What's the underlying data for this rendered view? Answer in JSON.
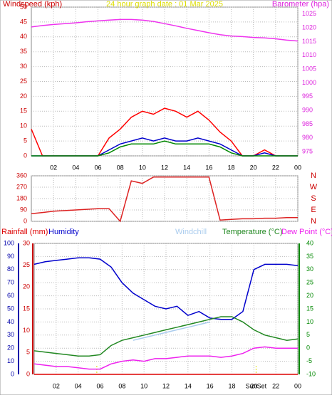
{
  "chart_data": [
    {
      "type": "line",
      "title": "24 hour graph date : 01 Mar 2025",
      "y_label": "Windspeed (kph)",
      "y2_label": "Barometer (hpa)",
      "y_color": "#cc0000",
      "y2_color": "#dd22dd",
      "x": [
        0,
        1,
        2,
        3,
        4,
        5,
        6,
        7,
        8,
        9,
        10,
        11,
        12,
        13,
        14,
        15,
        16,
        17,
        18,
        19,
        20,
        21,
        22,
        23,
        24
      ],
      "xlim": [
        0,
        24
      ],
      "xticks": [
        {
          "value": 2,
          "label": "02"
        },
        {
          "value": 4,
          "label": "04"
        },
        {
          "value": 6,
          "label": "06"
        },
        {
          "value": 8,
          "label": "08"
        },
        10,
        12,
        14,
        16,
        18,
        20,
        22,
        {
          "value": 24,
          "label": "00"
        }
      ],
      "ylim": [
        0,
        50
      ],
      "yticks": [
        0,
        5,
        10,
        15,
        20,
        25,
        30,
        35,
        40,
        45,
        50
      ],
      "y2lim": [
        973.5,
        1027.5
      ],
      "y2ticks": [
        975,
        980,
        985,
        990,
        995,
        1000,
        1005,
        1010,
        1015,
        1020,
        1025
      ],
      "grid": true,
      "series": [
        {
          "color": "#ff0000",
          "values": [
            9,
            0,
            0,
            0,
            0,
            0,
            0,
            6,
            9,
            13,
            15,
            14,
            16,
            15,
            13,
            15,
            12,
            8,
            5,
            0,
            0,
            2,
            0,
            0,
            0
          ]
        },
        {
          "color": "#0000cc",
          "values": [
            0,
            0,
            0,
            0,
            0,
            0,
            0,
            2,
            4,
            5,
            6,
            5,
            6,
            5,
            5,
            6,
            5,
            4,
            2,
            0,
            0,
            1,
            0,
            0,
            0
          ]
        },
        {
          "color": "#008800",
          "values": [
            0,
            0,
            0,
            0,
            0,
            0,
            0,
            1,
            3,
            4,
            4,
            4,
            5,
            4,
            4,
            4,
            4,
            3,
            1,
            0,
            0,
            0,
            0,
            0,
            0
          ]
        },
        {
          "color": "#ee33ee",
          "axis": "y2",
          "values": [
            1020.3,
            1020.8,
            1021.2,
            1021.5,
            1021.8,
            1022.2,
            1022.5,
            1022.8,
            1023,
            1023,
            1022.8,
            1022.3,
            1021.5,
            1020.7,
            1019.8,
            1019,
            1018.2,
            1017.5,
            1017,
            1016.8,
            1016.5,
            1016.3,
            1016,
            1015.5,
            1015.2
          ]
        }
      ]
    },
    {
      "type": "line",
      "y_color": "#cc0000",
      "y2_color": "#cc0000",
      "x": [
        0,
        1,
        2,
        3,
        4,
        5,
        6,
        7,
        8,
        9,
        10,
        11,
        12,
        13,
        14,
        15,
        16,
        17,
        18,
        19,
        20,
        21,
        22,
        23,
        24
      ],
      "xlim": [
        0,
        24
      ],
      "xticks": [
        2,
        4,
        6,
        8,
        10,
        12,
        14,
        16,
        18,
        20,
        22,
        24
      ],
      "ylim": [
        0,
        360
      ],
      "yticks": [
        0,
        90,
        180,
        270,
        360
      ],
      "y2lim": [
        0,
        360
      ],
      "y2ticks": [
        {
          "value": 0,
          "label": "N"
        },
        {
          "value": 90,
          "label": "E"
        },
        {
          "value": 180,
          "label": "S"
        },
        {
          "value": 270,
          "label": "W"
        },
        {
          "value": 360,
          "label": "N"
        }
      ],
      "grid": true,
      "series": [
        {
          "color": "#dd2222",
          "values": [
            60,
            70,
            80,
            85,
            90,
            95,
            100,
            100,
            0,
            320,
            300,
            350,
            350,
            350,
            350,
            350,
            350,
            10,
            15,
            20,
            20,
            25,
            25,
            30,
            30
          ]
        }
      ]
    },
    {
      "type": "line",
      "y_color": "#0000aa",
      "y2_color": "#008800",
      "y3_color": "#cc0000",
      "x": [
        0,
        1,
        2,
        3,
        4,
        5,
        6,
        7,
        8,
        9,
        10,
        11,
        12,
        13,
        14,
        15,
        16,
        17,
        18,
        19,
        20,
        21,
        22,
        23,
        24
      ],
      "xlim": [
        0,
        24
      ],
      "xticks": [
        {
          "value": 2,
          "label": "02"
        },
        {
          "value": 4,
          "label": "04"
        },
        {
          "value": 6,
          "label": "06"
        },
        {
          "value": 8,
          "label": "08"
        },
        10,
        12,
        14,
        16,
        18,
        20,
        22,
        {
          "value": 24,
          "label": "00"
        }
      ],
      "ylim": [
        0,
        100
      ],
      "yticks": [
        0,
        10,
        20,
        30,
        40,
        50,
        60,
        70,
        80,
        90,
        100
      ],
      "y3lim": [
        0,
        30
      ],
      "y3ticks": [
        0,
        5,
        10,
        15,
        20,
        25,
        30
      ],
      "y2lim": [
        -10,
        40
      ],
      "y2ticks": [
        -10,
        -5,
        0,
        5,
        10,
        15,
        20,
        25,
        30,
        35,
        40
      ],
      "grid": true,
      "sunrise": 5.7,
      "sunset": {
        "x": 20.2,
        "label": "SunSet"
      },
      "series": [
        {
          "name": "Rainfall (mm)",
          "color": "#dd0000",
          "axis": "y3",
          "values": [
            0,
            0,
            0,
            0,
            0,
            0,
            0,
            0,
            0,
            0,
            0,
            0,
            0,
            0,
            0,
            0,
            0,
            0,
            0,
            0,
            0,
            0,
            0,
            0,
            0
          ]
        },
        {
          "name": "Humidity",
          "color": "#0000cc",
          "values": [
            84,
            86,
            87,
            88,
            89,
            89,
            88,
            82,
            70,
            62,
            57,
            52,
            50,
            52,
            45,
            48,
            43,
            42,
            42,
            48,
            80,
            84,
            84,
            84,
            83
          ]
        },
        {
          "name": "Windchill",
          "color": "#aaccee",
          "axis": "y2",
          "values": [
            null,
            null,
            null,
            null,
            null,
            null,
            null,
            null,
            null,
            3,
            4,
            5,
            6,
            7,
            8,
            9,
            10,
            null,
            null,
            null,
            null,
            null,
            null,
            null,
            null
          ]
        },
        {
          "name": "Temperature (°C)",
          "color": "#228822",
          "axis": "y2",
          "values": [
            -1,
            -1.5,
            -2,
            -2.5,
            -3,
            -3,
            -2.5,
            1,
            3,
            4,
            5,
            6,
            7,
            8,
            9,
            10,
            11,
            12,
            12,
            10,
            7,
            5,
            4,
            3,
            3.5
          ]
        },
        {
          "name": "Dew Point (°C)",
          "color": "#ee22ee",
          "axis": "y2",
          "values": [
            -6,
            -6.5,
            -7,
            -7,
            -7.5,
            -8,
            -8,
            -6,
            -5,
            -4.5,
            -5,
            -4,
            -4,
            -3.5,
            -3,
            -3,
            -3,
            -3.5,
            -3,
            -2,
            0,
            0.5,
            0,
            0,
            0
          ]
        }
      ]
    }
  ]
}
